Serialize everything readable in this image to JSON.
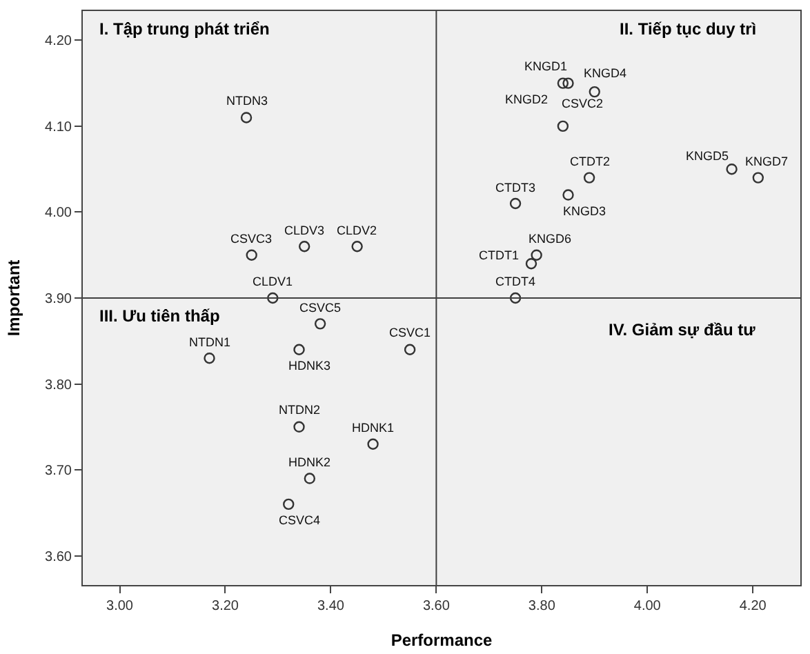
{
  "chart_data": {
    "type": "scatter",
    "xlabel": "Performance",
    "ylabel": "Important",
    "x": [
      3.24,
      3.25,
      3.35,
      3.45,
      3.29,
      3.38,
      3.17,
      3.34,
      3.55,
      3.34,
      3.48,
      3.36,
      3.32,
      3.84,
      3.85,
      3.9,
      3.84,
      3.89,
      4.16,
      4.21,
      3.75,
      3.85,
      3.79,
      3.78,
      3.75
    ],
    "series": [
      {
        "color": "#333333",
        "values": [
          4.11,
          3.95,
          3.96,
          3.96,
          3.9,
          3.87,
          3.83,
          3.84,
          3.84,
          3.75,
          3.73,
          3.69,
          3.66,
          4.15,
          4.15,
          4.14,
          4.1,
          4.04,
          4.05,
          4.04,
          4.01,
          4.02,
          3.95,
          3.94,
          3.9
        ]
      }
    ],
    "xlim": [
      2.93,
      4.29
    ],
    "ylim": [
      3.566,
      4.234
    ],
    "xticks": [
      {
        "value": 3.0,
        "label": "3.00"
      },
      {
        "value": 3.2,
        "label": "3.20"
      },
      {
        "value": 3.4,
        "label": "3.40"
      },
      {
        "value": 3.6,
        "label": "3.60"
      },
      {
        "value": 3.8,
        "label": "3.80"
      },
      {
        "value": 4.0,
        "label": "4.00"
      },
      {
        "value": 4.2,
        "label": "4.20"
      }
    ],
    "yticks": [
      {
        "value": 3.6,
        "label": "3.60"
      },
      {
        "value": 3.7,
        "label": "3.70"
      },
      {
        "value": 3.8,
        "label": "3.80"
      },
      {
        "value": 3.9,
        "label": "3.90"
      },
      {
        "value": 4.0,
        "label": "4.00"
      },
      {
        "value": 4.1,
        "label": "4.10"
      },
      {
        "value": 4.2,
        "label": "4.20"
      }
    ],
    "ref_lines": [
      {
        "axis": "x",
        "value": 3.6,
        "color": "#404040"
      },
      {
        "axis": "y",
        "value": 3.9,
        "color": "#404040"
      }
    ],
    "marker": "circle",
    "grid": false,
    "annotations": [
      "I. Tập trung phát triển",
      "II. Tiếp tục duy trì",
      "III. Ưu tiên thấp",
      "IV. Giảm sự đầu tư",
      {
        "text": "NTDN3",
        "x": 3.24,
        "y": 4.11
      },
      {
        "text": "CSVC3",
        "x": 3.25,
        "y": 3.95
      },
      {
        "text": "CLDV3",
        "x": 3.35,
        "y": 3.96
      },
      {
        "text": "CLDV2",
        "x": 3.45,
        "y": 3.96
      },
      {
        "text": "CLDV1",
        "x": 3.29,
        "y": 3.9
      },
      {
        "text": "CSVC5",
        "x": 3.38,
        "y": 3.87
      },
      {
        "text": "NTDN1",
        "x": 3.17,
        "y": 3.83
      },
      {
        "text": "HDNK3",
        "x": 3.34,
        "y": 3.84
      },
      {
        "text": "CSVC1",
        "x": 3.55,
        "y": 3.84
      },
      {
        "text": "NTDN2",
        "x": 3.34,
        "y": 3.75
      },
      {
        "text": "HDNK1",
        "x": 3.48,
        "y": 3.73
      },
      {
        "text": "HDNK2",
        "x": 3.36,
        "y": 3.69
      },
      {
        "text": "CSVC4",
        "x": 3.32,
        "y": 3.66
      },
      {
        "text": "KNGD1",
        "x": 3.84,
        "y": 4.15
      },
      {
        "text": "KNGD2",
        "x": 3.85,
        "y": 4.15
      },
      {
        "text": "KNGD4",
        "x": 3.9,
        "y": 4.14
      },
      {
        "text": "CSVC2",
        "x": 3.84,
        "y": 4.1
      },
      {
        "text": "CTDT2",
        "x": 3.89,
        "y": 4.04
      },
      {
        "text": "KNGD5",
        "x": 4.16,
        "y": 4.05
      },
      {
        "text": "KNGD7",
        "x": 4.21,
        "y": 4.04
      },
      {
        "text": "CTDT3",
        "x": 3.75,
        "y": 4.01
      },
      {
        "text": "KNGD3",
        "x": 3.85,
        "y": 4.02
      },
      {
        "text": "KNGD6",
        "x": 3.79,
        "y": 3.95
      },
      {
        "text": "CTDT1",
        "x": 3.78,
        "y": 3.94
      },
      {
        "text": "CTDT4",
        "x": 3.75,
        "y": 3.9
      }
    ]
  }
}
